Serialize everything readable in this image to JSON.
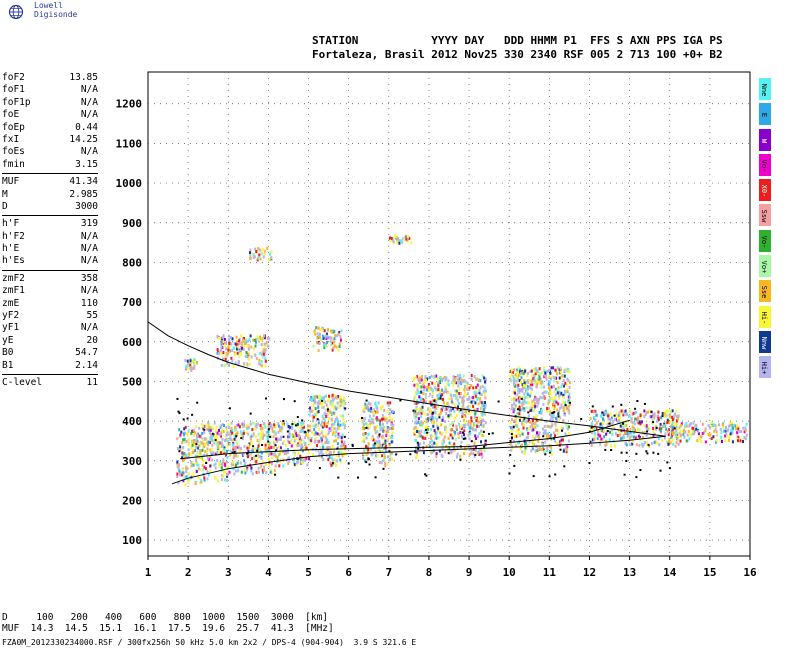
{
  "brand": {
    "name": "Lowell Digisonde",
    "icon": "globe-icon"
  },
  "header": {
    "line1": "STATION           YYYY DAY   DDD HHMM P1  FFS S AXN PPS IGA PS",
    "line2": "Fortaleza, Brasil 2012 Nov25 330 2340 RSF 005 2 713 100 +0+ B2"
  },
  "parameters": [
    [
      {
        "name": "foF2",
        "value": "13.85"
      },
      {
        "name": "foF1",
        "value": "N/A"
      },
      {
        "name": "foF1p",
        "value": "N/A"
      },
      {
        "name": "foE",
        "value": "N/A"
      },
      {
        "name": "foEp",
        "value": "0.44"
      },
      {
        "name": "fxI",
        "value": "14.25"
      },
      {
        "name": "foEs",
        "value": "N/A"
      },
      {
        "name": "fmin",
        "value": "3.15"
      }
    ],
    [
      {
        "name": "MUF",
        "value": "41.34"
      },
      {
        "name": "M",
        "value": "2.985"
      },
      {
        "name": "D",
        "value": "3000"
      }
    ],
    [
      {
        "name": "h'F",
        "value": "319"
      },
      {
        "name": "h'F2",
        "value": "N/A"
      },
      {
        "name": "h'E",
        "value": "N/A"
      },
      {
        "name": "h'Es",
        "value": "N/A"
      }
    ],
    [
      {
        "name": "zmF2",
        "value": "358"
      },
      {
        "name": "zmF1",
        "value": "N/A"
      },
      {
        "name": "zmE",
        "value": "110"
      },
      {
        "name": "yF2",
        "value": "55"
      },
      {
        "name": "yF1",
        "value": "N/A"
      },
      {
        "name": "yE",
        "value": "20"
      },
      {
        "name": "B0",
        "value": "54.7"
      },
      {
        "name": "B1",
        "value": "2.14"
      }
    ],
    [
      {
        "name": "C-level",
        "value": "11"
      }
    ]
  ],
  "muf_table": {
    "d_label": "D",
    "d_values": [
      "100",
      "200",
      "400",
      "600",
      "800",
      "1000",
      "1500",
      "3000"
    ],
    "d_unit": "[km]",
    "muf_label": "MUF",
    "muf_values": [
      "14.3",
      "14.5",
      "15.1",
      "16.1",
      "17.5",
      "19.6",
      "25.7",
      "41.3"
    ],
    "muf_unit": "[MHz]"
  },
  "footer": "FZA0M_2012330234000.RSF / 300fx256h 50 kHz 5.0 km 2x2 / DPS-4 (904-904)  3.9 S 321.6 E",
  "legend": [
    {
      "label": "Nne",
      "color": "#55f2f2"
    },
    {
      "label": "E",
      "color": "#2fa8e8"
    },
    {
      "label": "W",
      "color": "#8800cc"
    },
    {
      "label": "Vo-",
      "color": "#ee00cc"
    },
    {
      "label": "X0-",
      "color": "#ee1c1c"
    },
    {
      "label": "Ssw",
      "color": "#f5a0a0"
    },
    {
      "label": "Vo-",
      "color": "#30b030"
    },
    {
      "label": "Vo+",
      "color": "#a8f8a8"
    },
    {
      "label": "Sse",
      "color": "#f8b820"
    },
    {
      "label": "Hi-",
      "color": "#f8f83a"
    },
    {
      "label": "Nnw",
      "color": "#103a90"
    },
    {
      "label": "Hi+",
      "color": "#b4b4f0"
    }
  ],
  "chart_data": {
    "type": "scatter",
    "x_ticks": [
      1,
      2,
      3,
      4,
      5,
      6,
      7,
      8,
      9,
      10,
      11,
      12,
      13,
      14,
      15,
      16
    ],
    "y_ticks": [
      100,
      200,
      300,
      400,
      500,
      600,
      700,
      800,
      900,
      1000,
      1100,
      1200
    ],
    "xlim": [
      1,
      16
    ],
    "ylim": [
      60,
      1280
    ],
    "grid": "dotted",
    "traces": [
      {
        "name": "",
        "x": [
          1.0,
          1.5,
          2.0,
          2.5,
          3.0,
          4.0,
          5.0,
          6.0,
          7.0,
          8.0,
          9.0,
          10.0,
          11.0,
          12.0,
          13.0,
          13.9
        ],
        "y": [
          650,
          615,
          590,
          568,
          548,
          518,
          496,
          476,
          460,
          444,
          428,
          414,
          400,
          388,
          374,
          362
        ]
      },
      {
        "name": "",
        "x": [
          1.6,
          2.0,
          3.0,
          4.0,
          5.0,
          6.0,
          7.0,
          8.0,
          9.0,
          10.0,
          11.0,
          12.0,
          13.0,
          13.9
        ],
        "y": [
          242,
          256,
          280,
          296,
          310,
          318,
          322,
          326,
          330,
          334,
          338,
          344,
          352,
          362
        ]
      },
      {
        "name": "",
        "x": [
          1.8,
          3,
          5,
          7,
          8,
          9,
          10,
          11,
          12,
          13
        ],
        "y": [
          305,
          318,
          328,
          333,
          334,
          336,
          346,
          356,
          372,
          402
        ]
      }
    ],
    "echo_clusters": [
      {
        "x": [
          1.7,
          2.3
        ],
        "y": [
          240,
          390
        ]
      },
      {
        "x": [
          2.3,
          3.0
        ],
        "y": [
          250,
          400
        ]
      },
      {
        "x": [
          3.0,
          4.2
        ],
        "y": [
          270,
          400
        ]
      },
      {
        "x": [
          4.2,
          5.0
        ],
        "y": [
          290,
          400
        ]
      },
      {
        "x": [
          5.0,
          5.9
        ],
        "y": [
          290,
          470
        ]
      },
      {
        "x": [
          6.3,
          7.1
        ],
        "y": [
          290,
          450
        ]
      },
      {
        "x": [
          7.6,
          9.4
        ],
        "y": [
          310,
          520
        ]
      },
      {
        "x": [
          10.0,
          11.5
        ],
        "y": [
          320,
          540
        ]
      },
      {
        "x": [
          12.0,
          14.2
        ],
        "y": [
          340,
          430
        ]
      },
      {
        "x": [
          14.0,
          15.9
        ],
        "y": [
          350,
          400
        ]
      },
      {
        "x": [
          1.9,
          2.2
        ],
        "y": [
          530,
          560
        ]
      },
      {
        "x": [
          2.7,
          4.0
        ],
        "y": [
          540,
          620
        ]
      },
      {
        "x": [
          5.1,
          5.8
        ],
        "y": [
          580,
          640
        ]
      },
      {
        "x": [
          7.0,
          7.6
        ],
        "y": [
          850,
          870
        ]
      },
      {
        "x": [
          3.5,
          4.1
        ],
        "y": [
          810,
          840
        ]
      }
    ]
  }
}
